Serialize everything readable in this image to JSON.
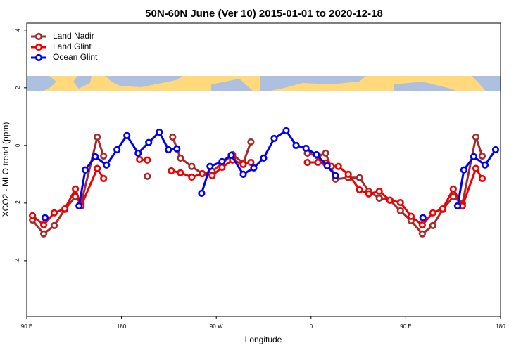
{
  "chart_data": {
    "type": "line",
    "title": "50N-60N June (Ver 10)   2015-01-01 to 2020-12-18",
    "x_label": "Longitude",
    "y_label": "XCO2 - MLO trend (ppm)",
    "xlim": [
      90,
      540
    ],
    "ylim": [
      -5.93,
      4.24
    ],
    "xticks": [
      {
        "value": 90,
        "label": "90 E"
      },
      180,
      {
        "value": 270,
        "label": "90 W"
      },
      {
        "value": 360,
        "label": "0"
      },
      {
        "value": 450,
        "label": "90 E"
      },
      {
        "value": 540,
        "label": "180"
      }
    ],
    "yticks": [
      -4,
      -2,
      0,
      2,
      4
    ],
    "legend": "top-left",
    "series": [
      {
        "name": "Land Nadir",
        "color": "#A52A2A",
        "x": [
          95.4,
          106.1,
          116.1,
          126.2,
          136.2,
          141.6,
          157.0,
          163.0,
          null,
          204.5,
          null,
          228.6,
          236.0,
          246.7,
          256.7,
          266.1,
          285.5,
          295.6,
          302.9,
          null,
          356.5,
          366.5,
          373.9,
          383.3,
          395.4,
          406.1,
          414.8,
          424.8,
          434.9,
          444.9,
          455.0,
          465.7,
          475.7,
          485.1,
          495.1,
          503.8,
          516.6,
          522.6
        ],
        "values": [
          -2.59,
          -3.07,
          -2.78,
          -2.22,
          -1.78,
          -2.02,
          0.29,
          -0.37,
          null,
          -1.07,
          null,
          0.29,
          -0.44,
          -0.73,
          -0.98,
          -0.9,
          -0.32,
          -0.61,
          0.12,
          null,
          -0.27,
          -0.37,
          -0.27,
          -1.17,
          -1.12,
          -1.12,
          -1.59,
          -1.83,
          -1.9,
          -2.27,
          -2.61,
          -3.07,
          -2.78,
          -2.22,
          -1.78,
          -2.02,
          0.29,
          -0.37
        ]
      },
      {
        "name": "Land Glint",
        "color": "#EE0000",
        "x": [
          95.4,
          106.1,
          116.1,
          126.2,
          136.2,
          141.6,
          157.0,
          163.0,
          null,
          197.1,
          204.5,
          null,
          227.3,
          236.0,
          246.7,
          256.7,
          266.1,
          275.5,
          285.5,
          295.6,
          302.9,
          null,
          356.5,
          366.5,
          373.9,
          379.3,
          386.0,
          395.4,
          406.1,
          414.8,
          424.8,
          434.9,
          444.9,
          455.0,
          465.7,
          475.7,
          485.1,
          495.1,
          503.8,
          516.6,
          522.6
        ],
        "values": [
          -2.44,
          -2.76,
          -2.34,
          -2.2,
          -1.51,
          -2.1,
          -0.8,
          -1.15,
          null,
          -0.49,
          -0.51,
          null,
          -0.88,
          -0.95,
          -1.1,
          -0.98,
          -1.05,
          -0.76,
          -0.51,
          -0.66,
          -0.59,
          null,
          -0.59,
          -0.59,
          -0.61,
          -0.73,
          -0.73,
          -1.0,
          -1.54,
          -1.68,
          -1.59,
          -1.9,
          -1.98,
          -2.46,
          -2.76,
          -2.34,
          -2.2,
          -1.51,
          -2.1,
          -0.8,
          -1.15
        ]
      },
      {
        "name": "Ocean Glint",
        "color": "#0000EE",
        "x": [
          107.4,
          null,
          139.6,
          145.6,
          155.0,
          165.7,
          175.7,
          185.1,
          195.8,
          205.8,
          215.9,
          224.6,
          232.6,
          null,
          256.1,
          264.1,
          275.5,
          284.2,
          295.6,
          305.6,
          315.0,
          325.0,
          336.4,
          345.8,
          355.2,
          365.2,
          375.3,
          383.3,
          null,
          466.3,
          null,
          499.2,
          505.2,
          514.6,
          525.3,
          535.3
        ],
        "values": [
          -2.51,
          null,
          -2.1,
          -0.85,
          -0.39,
          -0.68,
          -0.15,
          0.34,
          -0.27,
          0.1,
          0.46,
          -0.15,
          -0.12,
          null,
          -1.66,
          -0.73,
          -0.56,
          -0.34,
          -1.0,
          -0.78,
          -0.44,
          0.24,
          0.51,
          0,
          -0.1,
          -0.32,
          -0.71,
          -1.05,
          null,
          -2.51,
          null,
          -2.1,
          -0.85,
          -0.39,
          -0.68,
          -0.15
        ]
      }
    ]
  }
}
